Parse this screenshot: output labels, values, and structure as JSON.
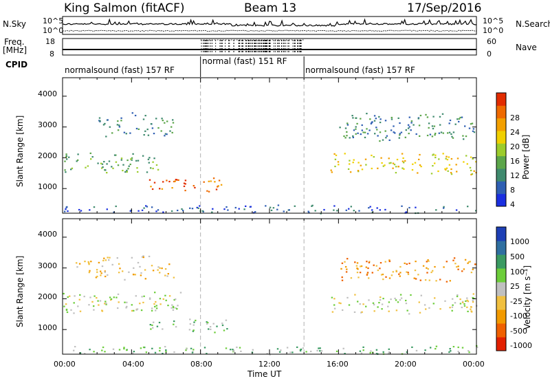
{
  "header": {
    "station": "King Salmon (fitACF)",
    "beam": "Beam 13",
    "date": "17/Sep/2016"
  },
  "top_panels": {
    "nsky_label": "N.Sky",
    "nsearch_label": "N.Search",
    "nsky_ticks": [
      "10^5",
      "10^0"
    ],
    "freq_label": "Freq.",
    "freq_unit": "[MHz]",
    "freq_ticks": [
      "18",
      "8"
    ],
    "nave_label": "Nave",
    "nave_ticks": [
      "60",
      "0"
    ],
    "cpid_label": "CPID",
    "cpid_segments": [
      {
        "label": "normalsound (fast) 157 RF",
        "start": 0,
        "end": 8
      },
      {
        "label": "normal (fast) 151 RF",
        "start": 8,
        "end": 14
      },
      {
        "label": "normalsound (fast) 157 RF",
        "start": 14,
        "end": 24
      }
    ]
  },
  "axes": {
    "xlabel": "Time UT",
    "ylabel": "Slant Range [km]",
    "x_ticks": [
      "00:00",
      "04:00",
      "08:00",
      "12:00",
      "16:00",
      "20:00",
      "00:00"
    ],
    "y_ticks": [
      "1000",
      "2000",
      "3000",
      "4000"
    ]
  },
  "power_bar": {
    "label": "Power [dB]",
    "ticks": [
      "4",
      "8",
      "12",
      "16",
      "20",
      "24",
      "28"
    ],
    "colors": [
      "#1a2fe0",
      "#2f5fb3",
      "#3f8a6e",
      "#5ca64a",
      "#9ccc2c",
      "#f0d000",
      "#f3a000",
      "#ef6a00",
      "#e22c00"
    ]
  },
  "velocity_bar": {
    "label": "Velocity [m s⁻¹]",
    "ticks": [
      "1000",
      "500",
      "100",
      "25",
      "-25",
      "-100",
      "-500",
      "-1000"
    ],
    "colors": [
      "#1d3fb5",
      "#2f6fa0",
      "#3a9a62",
      "#6ccd3a",
      "#c0c0c0",
      "#f1c040",
      "#f29a00",
      "#ef6000",
      "#e22000"
    ]
  },
  "chart_data": [
    {
      "type": "heatmap",
      "panel": "power",
      "x_range_hours": [
        0,
        24
      ],
      "ylim": [
        200,
        4600
      ],
      "xlabel": "",
      "ylabel": "Slant Range [km]",
      "vertical_markers_hours": [
        8,
        14
      ],
      "regions": [
        {
          "t0": 0.0,
          "t1": 5.5,
          "r0": 1500,
          "r1": 2200,
          "level": 3
        },
        {
          "t0": 5.0,
          "t1": 9.5,
          "r0": 900,
          "r1": 1400,
          "level": 7
        },
        {
          "t0": 2.0,
          "t1": 6.5,
          "r0": 2700,
          "r1": 3500,
          "level": 2
        },
        {
          "t0": 15.5,
          "t1": 24.0,
          "r0": 1400,
          "r1": 2200,
          "level": 5
        },
        {
          "t0": 16.0,
          "t1": 24.0,
          "r0": 2500,
          "r1": 3500,
          "level": 2
        },
        {
          "t0": 0.0,
          "t1": 24.0,
          "r0": 200,
          "r1": 500,
          "level": 1
        }
      ]
    },
    {
      "type": "heatmap",
      "panel": "velocity",
      "x_range_hours": [
        0,
        24
      ],
      "ylim": [
        200,
        4600
      ],
      "xlabel": "Time UT",
      "ylabel": "Slant Range [km]",
      "vertical_markers_hours": [
        8,
        14
      ],
      "regions": [
        {
          "t0": 0.0,
          "t1": 7.0,
          "r0": 1500,
          "r1": 2300,
          "level": 4
        },
        {
          "t0": 5.0,
          "t1": 9.5,
          "r0": 900,
          "r1": 1400,
          "level": 3
        },
        {
          "t0": 0.5,
          "t1": 6.5,
          "r0": 2600,
          "r1": 3500,
          "level": 5
        },
        {
          "t0": 15.5,
          "t1": 24.0,
          "r0": 1500,
          "r1": 2200,
          "level": 4
        },
        {
          "t0": 16.0,
          "t1": 24.0,
          "r0": 2500,
          "r1": 3400,
          "level": 6
        },
        {
          "t0": 0.0,
          "t1": 24.0,
          "r0": 200,
          "r1": 500,
          "level": 3
        }
      ]
    }
  ]
}
